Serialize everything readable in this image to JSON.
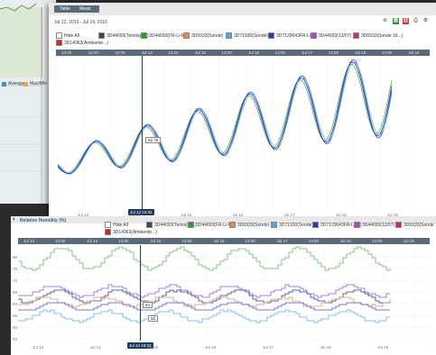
{
  "top_panel": {
    "tabs": [
      "Table",
      "Mean"
    ],
    "date_range": "Jul 12, 2016 - Jul 19, 2016",
    "legend": [
      {
        "label": "Hide All",
        "color": "#ffffff"
      },
      {
        "label": "3D44693(Temoign...)",
        "color": "#3a4a5a"
      },
      {
        "label": "3D44693(FR-Li-M)",
        "color": "#2a9a2a"
      },
      {
        "label": "3D6933(Sonde)",
        "color": "#e08a4a"
      },
      {
        "label": "3D71930(Sonde)",
        "color": "#4aa8e8"
      },
      {
        "label": "3D7129043FR-Li-M)",
        "color": "#2a3aa8"
      },
      {
        "label": "3D44693(13/07)",
        "color": "#a84ac8"
      },
      {
        "label": "3D6933(Sonde 16...)",
        "color": "#c82a6a"
      },
      {
        "label": "3D14963(Ambiente...)",
        "color": "#c82a2a"
      }
    ],
    "time_ticks": [
      "13:00",
      "13:00",
      "13:00",
      "Jul 14",
      "13:00",
      "Jul 15",
      "13:00",
      "Jul 16",
      "13:00",
      "Jul 17",
      "13:00",
      "Jul 18",
      "13:00",
      "Jul 19"
    ],
    "bottom_ticks": [
      "Jul 13",
      "Jul 14",
      "Jul 15",
      "Jul 16",
      "Jul 17",
      "Jul 18",
      "Jul 19"
    ],
    "cursor_label": "Jul 14 16:32",
    "tooltip_value": "22.75"
  },
  "back_panel": {
    "legend_items": [
      "Average",
      "Max/Min"
    ]
  },
  "bottom_panel": {
    "title": "Relative Humidity (%)",
    "legend": [
      {
        "label": "Hide All",
        "color": "#ffffff"
      },
      {
        "label": "3D44693(Temoign...)",
        "color": "#3a4a5a"
      },
      {
        "label": "3D44693(FR-Li-M)",
        "color": "#2a9a2a"
      },
      {
        "label": "3D6933(Sonde)",
        "color": "#e08a4a"
      },
      {
        "label": "3D71930(Sonde)",
        "color": "#4aa8e8"
      },
      {
        "label": "3D7129043FR-Li-M)",
        "color": "#2a3aa8"
      },
      {
        "label": "3D44693(13/07)",
        "color": "#a84ac8"
      },
      {
        "label": "3D6933(Sonde 16...)",
        "color": "#c82a6a"
      },
      {
        "label": "3D14963(Ambiente...)",
        "color": "#c82a2a"
      }
    ],
    "y_ticks": [
      "80",
      "75",
      "70",
      "65",
      "60",
      "55",
      "50",
      "45"
    ],
    "time_ticks": [
      "Jul 13",
      "13:00",
      "Jul 14",
      "13:00",
      "Jul 15",
      "13:00",
      "Jul 16",
      "13:00",
      "Jul 17",
      "13:00",
      "Jul 18",
      "13:00",
      "Jul 19"
    ],
    "bottom_ticks": [
      "Jul 13",
      "Jul 14",
      "Jul 15",
      "Jul 16",
      "Jul 17",
      "Jul 18",
      "Jul 19"
    ],
    "cursor_label": "Jul 14 16:32",
    "tooltip_values": [
      "64",
      "55"
    ]
  },
  "colors": {
    "green": "#5fb85f",
    "blue": "#4a55d8",
    "navy": "#2a3a8a",
    "orange": "#e0955a",
    "cyan": "#5ab0e8",
    "purple": "#8a5ad8"
  }
}
